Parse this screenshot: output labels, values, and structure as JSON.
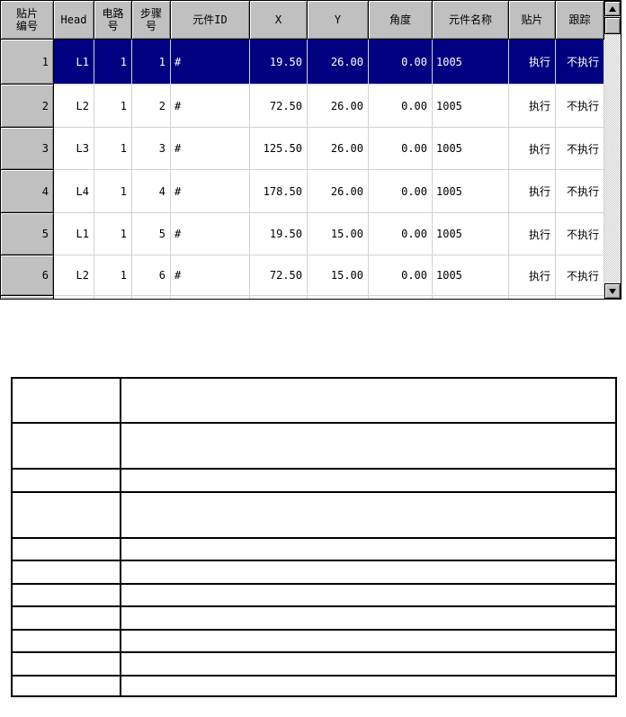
{
  "placement_grid": {
    "columns": [
      {
        "key": "seq",
        "label": "贴片\n编号",
        "align": "right"
      },
      {
        "key": "head",
        "label": "Head",
        "align": "right"
      },
      {
        "key": "circuit",
        "label": "电路\n号",
        "align": "right"
      },
      {
        "key": "step",
        "label": "步骤\n号",
        "align": "right"
      },
      {
        "key": "comp_id",
        "label": "元件ID",
        "align": "left"
      },
      {
        "key": "x",
        "label": "X",
        "align": "right"
      },
      {
        "key": "y",
        "label": "Y",
        "align": "right"
      },
      {
        "key": "angle",
        "label": "角度",
        "align": "right"
      },
      {
        "key": "comp_name",
        "label": "元件名称",
        "align": "left"
      },
      {
        "key": "place",
        "label": "贴片",
        "align": "right"
      },
      {
        "key": "track",
        "label": "跟踪",
        "align": "right"
      }
    ],
    "rows": [
      {
        "seq": "1",
        "head": "L1",
        "circuit": "1",
        "step": "1",
        "comp_id": "#",
        "x": "19.50",
        "y": "26.00",
        "angle": "0.00",
        "comp_name": "1005",
        "place": "执行",
        "track": "不执行"
      },
      {
        "seq": "2",
        "head": "L2",
        "circuit": "1",
        "step": "2",
        "comp_id": "#",
        "x": "72.50",
        "y": "26.00",
        "angle": "0.00",
        "comp_name": "1005",
        "place": "执行",
        "track": "不执行"
      },
      {
        "seq": "3",
        "head": "L3",
        "circuit": "1",
        "step": "3",
        "comp_id": "#",
        "x": "125.50",
        "y": "26.00",
        "angle": "0.00",
        "comp_name": "1005",
        "place": "执行",
        "track": "不执行"
      },
      {
        "seq": "4",
        "head": "L4",
        "circuit": "1",
        "step": "4",
        "comp_id": "#",
        "x": "178.50",
        "y": "26.00",
        "angle": "0.00",
        "comp_name": "1005",
        "place": "执行",
        "track": "不执行"
      },
      {
        "seq": "5",
        "head": "L1",
        "circuit": "1",
        "step": "5",
        "comp_id": "#",
        "x": "19.50",
        "y": "15.00",
        "angle": "0.00",
        "comp_name": "1005",
        "place": "执行",
        "track": "不执行"
      },
      {
        "seq": "6",
        "head": "L2",
        "circuit": "1",
        "step": "6",
        "comp_id": "#",
        "x": "72.50",
        "y": "15.00",
        "angle": "0.00",
        "comp_name": "1005",
        "place": "执行",
        "track": "不执行"
      }
    ],
    "selected_row_index": 0,
    "colors": {
      "selected_bg": "#000080",
      "selected_text": "#ffffff",
      "header_bg": "#c0c0c0",
      "grid_line": "#d2d2d2"
    },
    "scrollbar": {
      "orientation": "vertical",
      "up_icon": "up-triangle",
      "down_icon": "down-triangle"
    }
  },
  "empty_table": {
    "row_count": 11,
    "column_count": 2
  }
}
